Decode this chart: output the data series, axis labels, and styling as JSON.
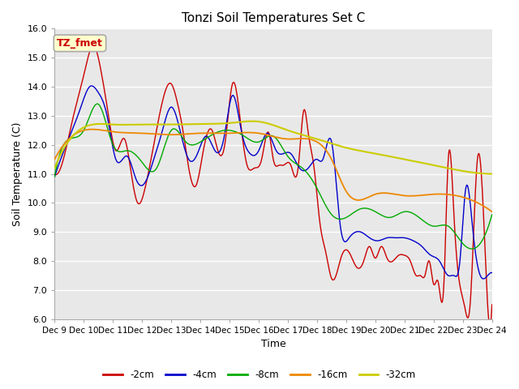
{
  "title": "Tonzi Soil Temperatures Set C",
  "xlabel": "Time",
  "ylabel": "Soil Temperature (C)",
  "ylim": [
    6.0,
    16.0
  ],
  "yticks": [
    6.0,
    7.0,
    8.0,
    9.0,
    10.0,
    11.0,
    12.0,
    13.0,
    14.0,
    15.0,
    16.0
  ],
  "xtick_labels": [
    "Dec 9",
    "Dec 10",
    "Dec 11",
    "Dec 12",
    "Dec 13",
    "Dec 14",
    "Dec 15",
    "Dec 16",
    "Dec 17",
    "Dec 18",
    "Dec 19",
    "Dec 20",
    "Dec 21",
    "Dec 22",
    "Dec 23",
    "Dec 24"
  ],
  "legend_labels": [
    "-2cm",
    "-4cm",
    "-8cm",
    "-16cm",
    "-32cm"
  ],
  "colors": {
    "-2cm": "#cc0000",
    "-4cm": "#0000cc",
    "-8cm": "#00aa00",
    "-16cm": "#ee8800",
    "-32cm": "#cccc00"
  },
  "annotation_text": "TZ_fmet",
  "annotation_bg": "#ffffcc",
  "annotation_color": "#cc0000",
  "fig_bg": "#ffffff",
  "plot_bg": "#e8e8e8",
  "grid_color": "#ffffff",
  "title_fontsize": 11,
  "label_fontsize": 9,
  "tick_fontsize": 8
}
